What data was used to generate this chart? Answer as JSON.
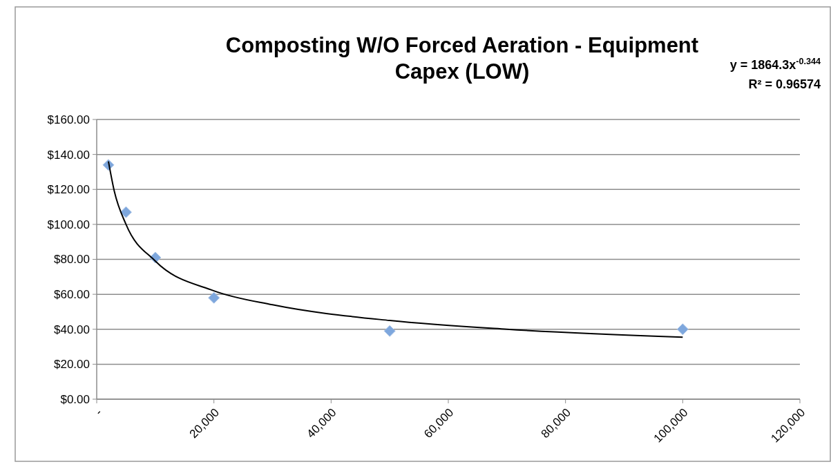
{
  "chart_data": {
    "type": "scatter",
    "title": "Composting W/O Forced Aeration - Equipment Capex (LOW)",
    "annotations": [
      "y = 1864.3x$^{-0.344}$",
      "R² = 0.96574"
    ],
    "xlim": [
      0,
      120000
    ],
    "xticks": [
      {
        "value": 0,
        "label": "-"
      },
      {
        "value": 20000,
        "label": "20,000"
      },
      {
        "value": 40000,
        "label": "40,000"
      },
      {
        "value": 60000,
        "label": "60,000"
      },
      {
        "value": 80000,
        "label": "80,000"
      },
      {
        "value": 100000,
        "label": "100,000"
      },
      {
        "value": 120000,
        "label": "120,000"
      }
    ],
    "ylim": [
      0,
      160
    ],
    "yticks": [
      {
        "value": 0,
        "label": "$0.00"
      },
      {
        "value": 20,
        "label": "$20.00"
      },
      {
        "value": 40,
        "label": "$40.00"
      },
      {
        "value": 60,
        "label": "$60.00"
      },
      {
        "value": 80,
        "label": "$80.00"
      },
      {
        "value": 100,
        "label": "$100.00"
      },
      {
        "value": 120,
        "label": "$120.00"
      },
      {
        "value": 140,
        "label": "$140.00"
      },
      {
        "value": 160,
        "label": "$160.00"
      }
    ],
    "grid": "y",
    "series": [
      {
        "marker": "diamond",
        "color": "#7ea7dd",
        "x": [
          2000,
          5000,
          10000,
          20000,
          50000,
          100000
        ],
        "values": [
          134,
          107,
          81,
          58,
          39,
          40
        ]
      },
      {
        "type": "line",
        "marker": "none",
        "line_style": "solid",
        "color": "#000000",
        "x": [
          2000,
          3000,
          5000,
          10000,
          20000,
          30000,
          50000,
          70000,
          100000
        ],
        "values": [
          136,
          119,
          100,
          79,
          62,
          54,
          45,
          40,
          35.5
        ]
      }
    ]
  }
}
